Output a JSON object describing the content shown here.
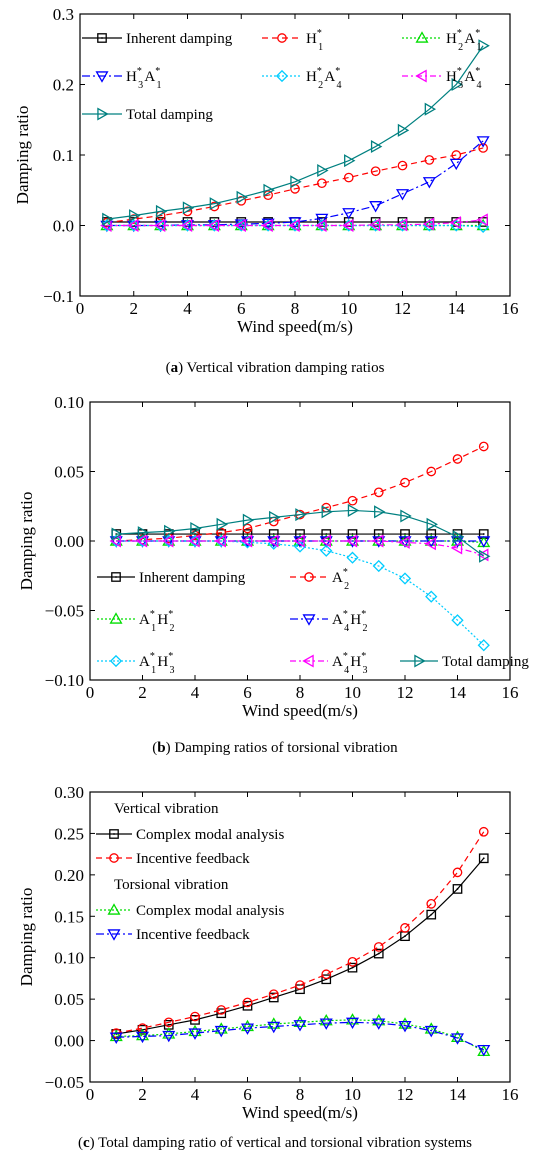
{
  "chart_data": [
    {
      "id": "a",
      "type": "line",
      "caption": {
        "letter": "a",
        "text": "Vertical vibration damping ratios"
      },
      "xlabel": "Wind speed(m/s)",
      "ylabel": "Damping ratio",
      "xlim": [
        0,
        16
      ],
      "ylim": [
        -0.1,
        0.3
      ],
      "xticks": [
        0,
        2,
        4,
        6,
        8,
        10,
        12,
        14,
        16
      ],
      "yticks": [
        -0.1,
        0.0,
        0.1,
        0.2,
        0.3
      ],
      "ytick_labels": [
        "−0.1",
        "0.0",
        "0.1",
        "0.2",
        "0.3"
      ],
      "grid": false,
      "x": [
        1,
        2,
        3,
        4,
        5,
        6,
        7,
        8,
        9,
        10,
        11,
        12,
        13,
        14,
        15
      ],
      "series": [
        {
          "name": "Inherent damping",
          "color": "#000000",
          "marker": "square",
          "dash": "",
          "values": [
            0.005,
            0.005,
            0.005,
            0.005,
            0.005,
            0.005,
            0.005,
            0.005,
            0.005,
            0.005,
            0.005,
            0.005,
            0.005,
            0.005,
            0.005
          ]
        },
        {
          "name": "H1*",
          "color": "#ff0000",
          "marker": "circle",
          "dash": "6,4",
          "values": [
            0.004,
            0.009,
            0.014,
            0.02,
            0.027,
            0.035,
            0.043,
            0.052,
            0.06,
            0.068,
            0.077,
            0.085,
            0.093,
            0.1,
            0.11
          ]
        },
        {
          "name": "H2*A1*",
          "color": "#00dd00",
          "marker": "triangle-up",
          "dash": "2,2",
          "values": [
            0.0,
            0.0,
            0.0,
            0.0,
            0.0,
            0.0,
            0.0,
            0.0,
            0.0,
            0.0,
            0.0,
            0.0,
            0.0,
            0.0,
            0.0
          ]
        },
        {
          "name": "H3*A1*",
          "color": "#0000ff",
          "marker": "triangle-down",
          "dash": "8,3,2,3",
          "values": [
            0.0,
            0.0,
            0.0,
            0.001,
            0.001,
            0.002,
            0.003,
            0.005,
            0.01,
            0.018,
            0.028,
            0.045,
            0.062,
            0.088,
            0.12
          ]
        },
        {
          "name": "H2*A4*",
          "color": "#00ccff",
          "marker": "diamond",
          "dash": "2,2",
          "values": [
            0.0,
            0.0,
            0.0,
            0.0,
            0.0,
            0.0,
            0.0,
            0.0,
            0.0,
            0.0,
            0.0,
            0.0,
            0.0,
            0.0,
            -0.002
          ]
        },
        {
          "name": "H3*A4*",
          "color": "#ff00ff",
          "marker": "triangle-left",
          "dash": "6,3,2,3",
          "values": [
            0.0,
            0.0,
            0.0,
            0.0,
            0.0,
            0.0,
            0.0,
            0.0,
            0.0,
            0.0,
            0.001,
            0.001,
            0.002,
            0.004,
            0.008
          ]
        },
        {
          "name": "Total damping",
          "color": "#008080",
          "marker": "triangle-right",
          "dash": "",
          "values": [
            0.009,
            0.014,
            0.02,
            0.025,
            0.031,
            0.04,
            0.05,
            0.062,
            0.078,
            0.092,
            0.112,
            0.135,
            0.165,
            0.2,
            0.255
          ]
        }
      ],
      "legend": [
        {
          "series": 0,
          "parts": [
            {
              "t": "Inherent damping"
            }
          ]
        },
        {
          "series": 1,
          "parts": [
            {
              "t": "H"
            },
            {
              "t": "*",
              "s": "sup"
            },
            {
              "t": "1",
              "s": "sub"
            }
          ]
        },
        {
          "series": 2,
          "parts": [
            {
              "t": "H"
            },
            {
              "t": "*",
              "s": "sup"
            },
            {
              "t": "2",
              "s": "sub"
            },
            {
              "t": "A"
            },
            {
              "t": "*",
              "s": "sup"
            },
            {
              "t": "1",
              "s": "sub"
            }
          ]
        },
        {
          "series": 3,
          "parts": [
            {
              "t": "H"
            },
            {
              "t": "*",
              "s": "sup"
            },
            {
              "t": "3",
              "s": "sub"
            },
            {
              "t": "A"
            },
            {
              "t": "*",
              "s": "sup"
            },
            {
              "t": "1",
              "s": "sub"
            }
          ]
        },
        {
          "series": 4,
          "parts": [
            {
              "t": "H"
            },
            {
              "t": "*",
              "s": "sup"
            },
            {
              "t": "2",
              "s": "sub"
            },
            {
              "t": "A"
            },
            {
              "t": "*",
              "s": "sup"
            },
            {
              "t": "4",
              "s": "sub"
            }
          ]
        },
        {
          "series": 5,
          "parts": [
            {
              "t": "H"
            },
            {
              "t": "*",
              "s": "sup"
            },
            {
              "t": "3",
              "s": "sub"
            },
            {
              "t": "A"
            },
            {
              "t": "*",
              "s": "sup"
            },
            {
              "t": "4",
              "s": "sub"
            }
          ]
        },
        {
          "series": 6,
          "parts": [
            {
              "t": "Total damping"
            }
          ]
        }
      ]
    },
    {
      "id": "b",
      "type": "line",
      "caption": {
        "letter": "b",
        "text": "Damping ratios of torsional vibration"
      },
      "xlabel": "Wind speed(m/s)",
      "ylabel": "Damping ratio",
      "xlim": [
        0,
        16
      ],
      "ylim": [
        -0.1,
        0.1
      ],
      "xticks": [
        0,
        2,
        4,
        6,
        8,
        10,
        12,
        14,
        16
      ],
      "yticks": [
        -0.1,
        -0.05,
        0.0,
        0.05,
        0.1
      ],
      "ytick_labels": [
        "−0.10",
        "−0.05",
        "0.00",
        "0.05",
        "0.10"
      ],
      "grid": false,
      "x": [
        1,
        2,
        3,
        4,
        5,
        6,
        7,
        8,
        9,
        10,
        11,
        12,
        13,
        14,
        15
      ],
      "series": [
        {
          "name": "Inherent damping",
          "color": "#000000",
          "marker": "square",
          "dash": "",
          "values": [
            0.005,
            0.005,
            0.005,
            0.005,
            0.005,
            0.005,
            0.005,
            0.005,
            0.005,
            0.005,
            0.005,
            0.005,
            0.005,
            0.005,
            0.005
          ]
        },
        {
          "name": "A2*",
          "color": "#ff0000",
          "marker": "circle",
          "dash": "6,4",
          "values": [
            0.0,
            0.001,
            0.002,
            0.004,
            0.006,
            0.009,
            0.014,
            0.019,
            0.024,
            0.029,
            0.035,
            0.042,
            0.05,
            0.059,
            0.068
          ]
        },
        {
          "name": "A1*H2*",
          "color": "#00dd00",
          "marker": "triangle-up",
          "dash": "2,2",
          "values": [
            0.0,
            0.0,
            0.0,
            0.0,
            0.0,
            0.0,
            0.0,
            0.0,
            0.0,
            0.0,
            0.0,
            0.0,
            0.0,
            0.0,
            -0.001
          ]
        },
        {
          "name": "A4*H2*",
          "color": "#0000ff",
          "marker": "triangle-down",
          "dash": "8,3,2,3",
          "values": [
            0.0,
            0.0,
            0.0,
            0.0,
            0.0,
            0.0,
            0.0,
            0.0,
            0.0,
            0.0,
            0.0,
            0.0,
            0.0,
            0.0,
            0.0
          ]
        },
        {
          "name": "A1*H3*",
          "color": "#00ccff",
          "marker": "diamond",
          "dash": "2,2",
          "values": [
            0.0,
            0.0,
            0.0,
            0.0,
            0.0,
            -0.001,
            -0.002,
            -0.004,
            -0.007,
            -0.012,
            -0.018,
            -0.027,
            -0.04,
            -0.057,
            -0.075
          ]
        },
        {
          "name": "A4*H3*",
          "color": "#ff00ff",
          "marker": "triangle-left",
          "dash": "6,3,2,3",
          "values": [
            0.0,
            0.0,
            0.0,
            0.0,
            0.0,
            0.0,
            0.0,
            0.0,
            0.0,
            0.0,
            0.0,
            -0.001,
            -0.002,
            -0.005,
            -0.01
          ]
        },
        {
          "name": "Total damping",
          "color": "#008080",
          "marker": "triangle-right",
          "dash": "",
          "values": [
            0.005,
            0.006,
            0.007,
            0.009,
            0.012,
            0.015,
            0.017,
            0.019,
            0.021,
            0.022,
            0.021,
            0.018,
            0.012,
            0.003,
            -0.011
          ]
        }
      ],
      "legend": [
        {
          "series": 0,
          "parts": [
            {
              "t": "Inherent damping"
            }
          ]
        },
        {
          "series": 1,
          "parts": [
            {
              "t": "A"
            },
            {
              "t": "*",
              "s": "sup"
            },
            {
              "t": "2",
              "s": "sub"
            }
          ]
        },
        {
          "series": 2,
          "parts": [
            {
              "t": "A"
            },
            {
              "t": "*",
              "s": "sup"
            },
            {
              "t": "1",
              "s": "sub"
            },
            {
              "t": "H"
            },
            {
              "t": "*",
              "s": "sup"
            },
            {
              "t": "2",
              "s": "sub"
            }
          ]
        },
        {
          "series": 3,
          "parts": [
            {
              "t": "A"
            },
            {
              "t": "*",
              "s": "sup"
            },
            {
              "t": "4",
              "s": "sub"
            },
            {
              "t": "H"
            },
            {
              "t": "*",
              "s": "sup"
            },
            {
              "t": "2",
              "s": "sub"
            }
          ]
        },
        {
          "series": 4,
          "parts": [
            {
              "t": "A"
            },
            {
              "t": "*",
              "s": "sup"
            },
            {
              "t": "1",
              "s": "sub"
            },
            {
              "t": "H"
            },
            {
              "t": "*",
              "s": "sup"
            },
            {
              "t": "3",
              "s": "sub"
            }
          ]
        },
        {
          "series": 5,
          "parts": [
            {
              "t": "A"
            },
            {
              "t": "*",
              "s": "sup"
            },
            {
              "t": "4",
              "s": "sub"
            },
            {
              "t": "H"
            },
            {
              "t": "*",
              "s": "sup"
            },
            {
              "t": "3",
              "s": "sub"
            }
          ]
        },
        {
          "series": 6,
          "parts": [
            {
              "t": "Total damping"
            }
          ]
        }
      ]
    },
    {
      "id": "c",
      "type": "line",
      "caption": {
        "letter": "c",
        "text": "Total damping ratio of vertical and torsional vibration systems"
      },
      "xlabel": "Wind speed(m/s)",
      "ylabel": "Damping ratio",
      "xlim": [
        0,
        16
      ],
      "ylim": [
        -0.05,
        0.3
      ],
      "xticks": [
        0,
        2,
        4,
        6,
        8,
        10,
        12,
        14,
        16
      ],
      "yticks": [
        -0.05,
        0.0,
        0.05,
        0.1,
        0.15,
        0.2,
        0.25,
        0.3
      ],
      "ytick_labels": [
        "−0.05",
        "0.00",
        "0.05",
        "0.10",
        "0.15",
        "0.20",
        "0.25",
        "0.30"
      ],
      "grid": false,
      "x": [
        1,
        2,
        3,
        4,
        5,
        6,
        7,
        8,
        9,
        10,
        11,
        12,
        13,
        14,
        15
      ],
      "series": [
        {
          "name": "Complex modal analysis",
          "color": "#000000",
          "marker": "square",
          "dash": "",
          "values": [
            0.008,
            0.013,
            0.019,
            0.025,
            0.033,
            0.042,
            0.052,
            0.062,
            0.074,
            0.088,
            0.105,
            0.126,
            0.152,
            0.183,
            0.22
          ]
        },
        {
          "name": "Incentive feedback",
          "color": "#ff0000",
          "marker": "circle",
          "dash": "6,4",
          "values": [
            0.009,
            0.015,
            0.022,
            0.029,
            0.037,
            0.046,
            0.056,
            0.067,
            0.08,
            0.095,
            0.113,
            0.136,
            0.165,
            0.203,
            0.252
          ]
        },
        {
          "name": "Complex modal analysis",
          "color": "#00dd00",
          "marker": "triangle-up",
          "dash": "2,2",
          "values": [
            0.005,
            0.006,
            0.008,
            0.011,
            0.014,
            0.017,
            0.02,
            0.022,
            0.024,
            0.025,
            0.024,
            0.02,
            0.014,
            0.004,
            -0.013
          ]
        },
        {
          "name": "Incentive feedback",
          "color": "#0000ff",
          "marker": "triangle-down",
          "dash": "8,3,2,3",
          "values": [
            0.004,
            0.005,
            0.006,
            0.009,
            0.012,
            0.015,
            0.017,
            0.019,
            0.021,
            0.022,
            0.021,
            0.018,
            0.012,
            0.003,
            -0.011
          ]
        }
      ],
      "legend_groups": [
        {
          "heading": "Vertical vibration",
          "items": [
            0,
            1
          ]
        },
        {
          "heading": "Torsional vibration",
          "items": [
            2,
            3
          ]
        }
      ]
    }
  ]
}
